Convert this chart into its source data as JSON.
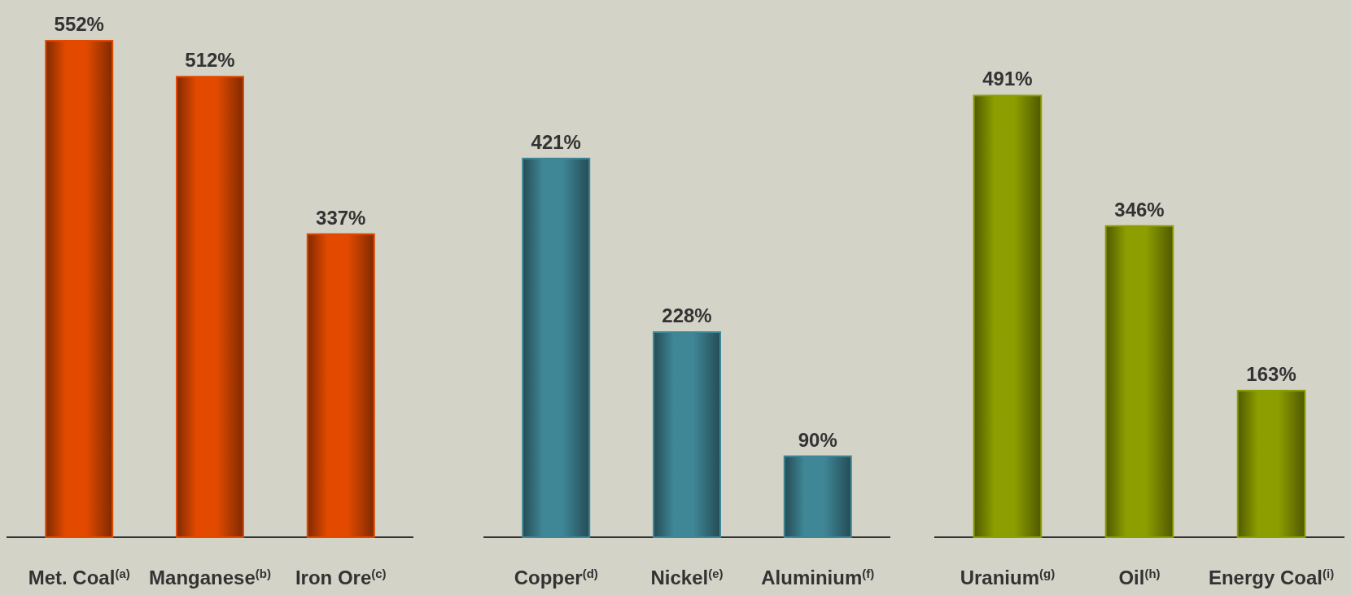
{
  "chart_data": [
    {
      "type": "bar",
      "categories": [
        "Met. Coal$^{(a)}$",
        "Manganese$^{(b)}$",
        "Iron Ore$^{(c)}$"
      ],
      "values": [
        552,
        512,
        337
      ],
      "color": "#e34a00",
      "value_labels": [
        "552%",
        "512%",
        "337%"
      ]
    },
    {
      "type": "bar",
      "categories": [
        "Copper$^{(d)}$",
        "Nickel$^{(e)}$",
        "Aluminium$^{(f)}$"
      ],
      "values": [
        421,
        228,
        90
      ],
      "color": "#3f8696",
      "value_labels": [
        "421%",
        "228%",
        "90%"
      ]
    },
    {
      "type": "bar",
      "categories": [
        "Uranium$^{(g)}$",
        "Oil$^{(h)}$",
        "Energy Coal$^{(i)}$"
      ],
      "values": [
        491,
        346,
        163
      ],
      "color": "#8c9e00",
      "value_labels": [
        "491%",
        "346%",
        "163%"
      ]
    }
  ]
}
